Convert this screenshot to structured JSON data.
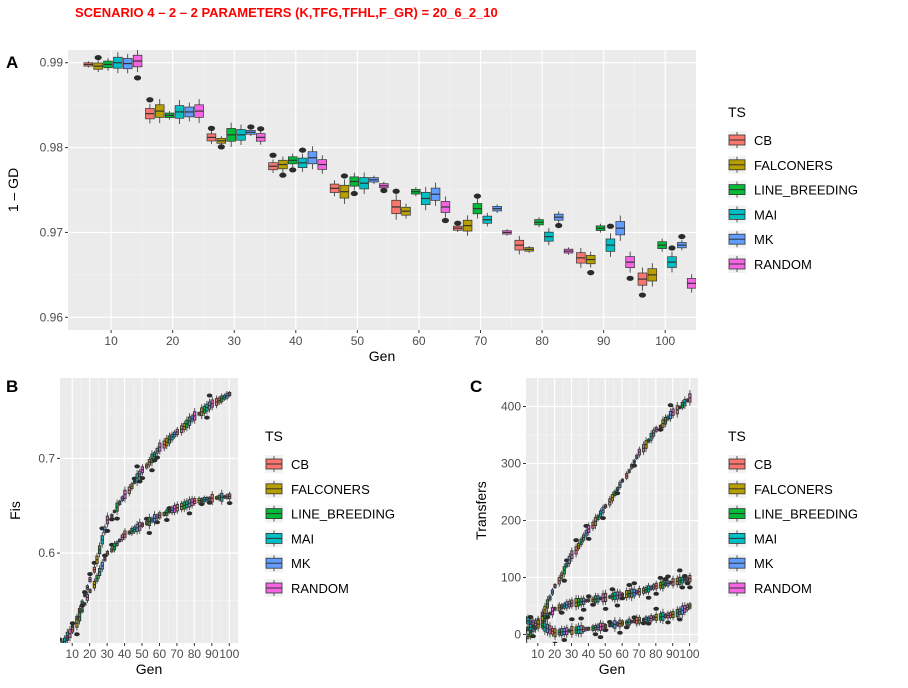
{
  "title": "SCENARIO  4 – 2 – 2  PARAMETERS (K,TFG,TFHL,F_GR) =  20_6_2_10",
  "legend": {
    "title": "TS",
    "entries": [
      {
        "name": "CB",
        "color": "#F8766D"
      },
      {
        "name": "FALCONERS",
        "color": "#B79F00"
      },
      {
        "name": "LINE_BREEDING",
        "color": "#00BA38"
      },
      {
        "name": "MAI",
        "color": "#00BFC4"
      },
      {
        "name": "MK",
        "color": "#619CFF"
      },
      {
        "name": "RANDOM",
        "color": "#F564E3"
      }
    ]
  },
  "chart_data": [
    {
      "panel": "A",
      "type": "box",
      "xlabel": "Gen",
      "ylabel": "1 – GD",
      "xlim": [
        3,
        105
      ],
      "ylim": [
        0.9585,
        0.9915
      ],
      "xticks": [
        10,
        20,
        30,
        40,
        50,
        60,
        70,
        80,
        90,
        100
      ],
      "xtick_labels": [
        "10",
        "20",
        "30",
        "40",
        "50",
        "60",
        "70",
        "80",
        "90",
        "100"
      ],
      "yticks": [
        0.96,
        0.97,
        0.98,
        0.99
      ],
      "ytick_labels": [
        "0.96",
        "0.97",
        "0.98",
        "0.99"
      ],
      "groups_per_gen": [
        "CB",
        "FALCONERS",
        "LINE_BREEDING",
        "MAI",
        "MK",
        "RANDOM"
      ],
      "gens": [
        10,
        20,
        30,
        40,
        50,
        60,
        70,
        80,
        90,
        100
      ],
      "series": [
        {
          "name": "CB",
          "median": [
            0.9898,
            0.984,
            0.9812,
            0.9778,
            0.9752,
            0.973,
            0.9705,
            0.9685,
            0.967,
            0.9645
          ]
        },
        {
          "name": "FALCONERS",
          "median": [
            0.9896,
            0.9843,
            0.9808,
            0.978,
            0.9748,
            0.9725,
            0.9708,
            0.968,
            0.9668,
            0.965
          ]
        },
        {
          "name": "LINE_BREEDING",
          "median": [
            0.9898,
            0.9838,
            0.9815,
            0.9785,
            0.976,
            0.9748,
            0.9728,
            0.9712,
            0.9705,
            0.9685
          ]
        },
        {
          "name": "MAI",
          "median": [
            0.99,
            0.9842,
            0.9815,
            0.9782,
            0.9758,
            0.974,
            0.9715,
            0.9695,
            0.9685,
            0.9665
          ]
        },
        {
          "name": "MK",
          "median": [
            0.9899,
            0.9842,
            0.9818,
            0.9788,
            0.9762,
            0.9745,
            0.9728,
            0.9718,
            0.9705,
            0.9685
          ]
        },
        {
          "name": "RANDOM",
          "median": [
            0.9902,
            0.9843,
            0.9812,
            0.978,
            0.9755,
            0.973,
            0.97,
            0.9678,
            0.9665,
            0.964
          ]
        }
      ]
    },
    {
      "panel": "B",
      "type": "box",
      "xlabel": "Gen",
      "ylabel": "Fis",
      "xlim": [
        3,
        105
      ],
      "ylim": [
        0.505,
        0.785
      ],
      "xticks": [
        10,
        20,
        30,
        40,
        50,
        60,
        70,
        80,
        90,
        100
      ],
      "xtick_labels": [
        "10",
        "20",
        "30",
        "40",
        "50",
        "60",
        "70",
        "80",
        "90",
        "100"
      ],
      "yticks": [
        0.6,
        0.7
      ],
      "ytick_labels": [
        "0.6",
        "0.7"
      ],
      "gens": [
        10,
        20,
        30,
        40,
        50,
        60,
        70,
        80,
        90,
        100
      ],
      "series": [
        {
          "name": "upper",
          "median": [
            0.522,
            0.572,
            0.635,
            0.662,
            0.688,
            0.712,
            0.728,
            0.745,
            0.758,
            0.768
          ]
        },
        {
          "name": "lower",
          "median": [
            0.519,
            0.56,
            0.6,
            0.62,
            0.63,
            0.64,
            0.648,
            0.655,
            0.658,
            0.66
          ]
        }
      ]
    },
    {
      "panel": "C",
      "type": "box",
      "xlabel": "Gen",
      "ylabel": "Transfers",
      "xlim": [
        3,
        105
      ],
      "ylim": [
        -15,
        450
      ],
      "xticks": [
        10,
        20,
        30,
        40,
        50,
        60,
        70,
        80,
        90,
        100
      ],
      "xtick_labels": [
        "10",
        "20",
        "30",
        "40",
        "50",
        "60",
        "70",
        "80",
        "90",
        "100"
      ],
      "yticks": [
        0,
        100,
        200,
        300,
        400
      ],
      "ytick_labels": [
        "0",
        "100",
        "200",
        "300",
        "400"
      ],
      "gens": [
        10,
        20,
        30,
        40,
        50,
        60,
        70,
        80,
        90,
        100
      ],
      "series": [
        {
          "name": "upper",
          "median": [
            22,
            85,
            140,
            185,
            225,
            270,
            320,
            360,
            390,
            415
          ]
        },
        {
          "name": "middle",
          "median": [
            20,
            45,
            55,
            60,
            65,
            70,
            75,
            85,
            92,
            98
          ]
        },
        {
          "name": "lower",
          "median": [
            18,
            3,
            7,
            10,
            15,
            20,
            25,
            30,
            35,
            50
          ]
        }
      ]
    }
  ]
}
